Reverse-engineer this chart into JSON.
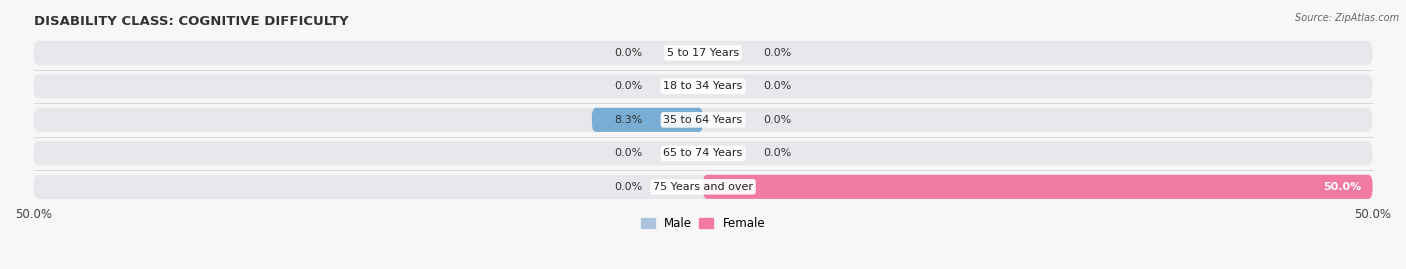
{
  "title": "DISABILITY CLASS: COGNITIVE DIFFICULTY",
  "source": "Source: ZipAtlas.com",
  "categories": [
    "5 to 17 Years",
    "18 to 34 Years",
    "35 to 64 Years",
    "65 to 74 Years",
    "75 Years and over"
  ],
  "male_values": [
    0.0,
    0.0,
    8.3,
    0.0,
    0.0
  ],
  "female_values": [
    0.0,
    0.0,
    0.0,
    0.0,
    50.0
  ],
  "male_color_small": "#adc4df",
  "male_color_large": "#7aadd4",
  "female_color_small": "#f2afc4",
  "female_color_large": "#f07aa0",
  "xlim": 50.0,
  "bar_height": 0.72,
  "bg_row_color": "#e8e8ec",
  "title_fontsize": 9.5,
  "label_fontsize": 8,
  "tick_fontsize": 8.5,
  "legend_fontsize": 8.5,
  "value_label_threshold": 5.0
}
